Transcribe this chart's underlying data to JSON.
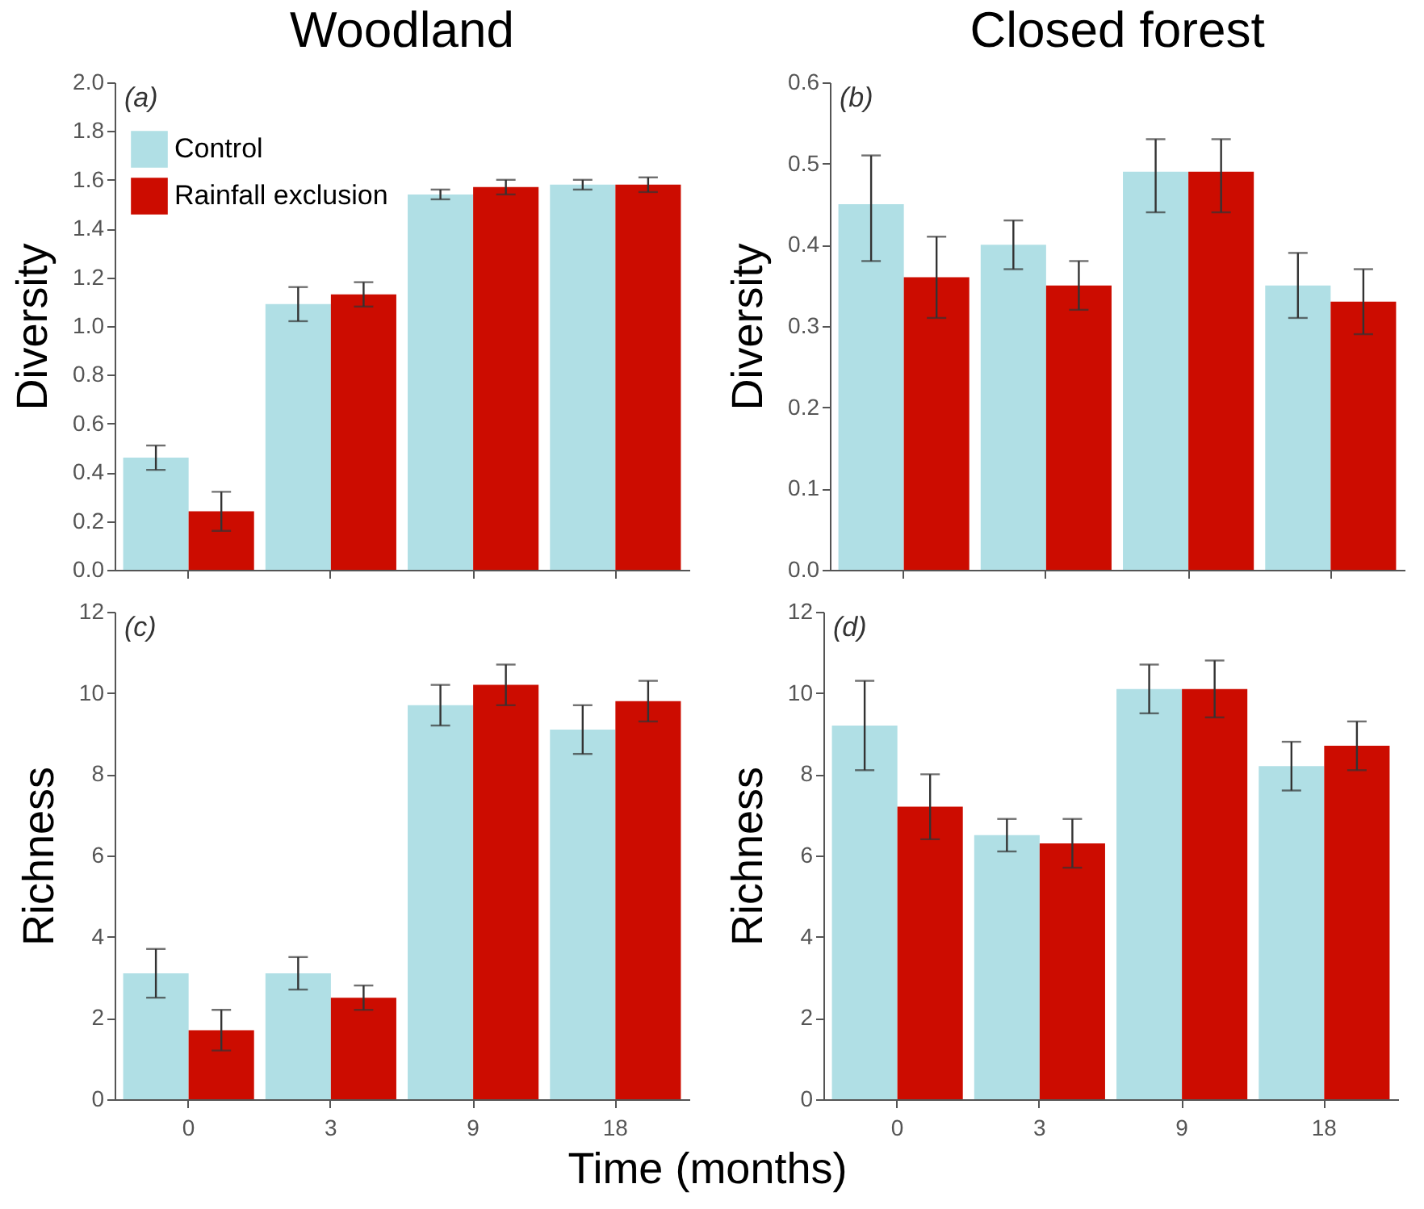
{
  "chart_data": [
    {
      "type": "bar",
      "title": "Woodland",
      "ylabel": "Diversity",
      "annotations": [
        "(a)"
      ],
      "categories": [
        "0",
        "3",
        "9",
        "18"
      ],
      "series": [
        {
          "name": "Control",
          "color": "#b0dfe5",
          "values": [
            0.46,
            1.09,
            1.54,
            1.58
          ],
          "errors": [
            0.05,
            0.07,
            0.02,
            0.02
          ]
        },
        {
          "name": "Rainfall exclusion",
          "color": "#cc0c00",
          "values": [
            0.24,
            1.13,
            1.57,
            1.58
          ],
          "errors": [
            0.08,
            0.05,
            0.03,
            0.03
          ]
        }
      ],
      "ylim": [
        0,
        2.0
      ],
      "yticks": [
        {
          "value": 0,
          "label": "0.0"
        },
        0.2,
        0.4,
        0.6,
        0.8,
        {
          "value": 1,
          "label": "1.0"
        },
        1.2,
        1.4,
        1.6,
        1.8,
        {
          "value": 2,
          "label": "2.0"
        }
      ],
      "legend": "top left",
      "tick_labels": "y"
    },
    {
      "type": "bar",
      "title": "Closed forest",
      "ylabel": "Diversity",
      "annotations": [
        "(b)"
      ],
      "categories": [
        "0",
        "3",
        "9",
        "18"
      ],
      "series": [
        {
          "color": "#b0dfe5",
          "values": [
            0.45,
            0.4,
            0.49,
            0.35
          ],
          "errors": [
            [
              0.38,
              0.51
            ],
            [
              0.37,
              0.43
            ],
            [
              0.44,
              0.53
            ],
            [
              0.31,
              0.39
            ]
          ]
        },
        {
          "color": "#cc0c00",
          "values": [
            0.36,
            0.35,
            0.49,
            0.33
          ],
          "errors": [
            [
              0.31,
              0.41
            ],
            [
              0.32,
              0.38
            ],
            [
              0.44,
              0.53
            ],
            [
              0.29,
              0.37
            ]
          ]
        }
      ],
      "ylim": [
        0,
        0.6
      ],
      "yticks": [
        {
          "value": 0,
          "label": "0.0"
        },
        0.1,
        0.2,
        0.3,
        0.4,
        0.5,
        0.6
      ],
      "tick_labels": "y"
    },
    {
      "type": "bar",
      "xlabel": "Time (months)",
      "ylabel": "Richness",
      "annotations": [
        "(c)"
      ],
      "categories": [
        "0",
        "3",
        "9",
        "18"
      ],
      "series": [
        {
          "color": "#b0dfe5",
          "values": [
            3.1,
            3.1,
            9.7,
            9.1
          ],
          "errors": [
            0.6,
            0.4,
            0.5,
            0.6
          ]
        },
        {
          "color": "#cc0c00",
          "values": [
            1.7,
            2.5,
            10.2,
            9.8
          ],
          "errors": [
            0.5,
            0.3,
            0.5,
            0.5
          ]
        }
      ],
      "ylim": [
        0,
        12
      ],
      "yticks": [
        0,
        2,
        4,
        6,
        8,
        10,
        12
      ]
    },
    {
      "type": "bar",
      "ylabel": "Richness",
      "annotations": [
        "(d)"
      ],
      "categories": [
        "0",
        "3",
        "9",
        "18"
      ],
      "series": [
        {
          "color": "#b0dfe5",
          "values": [
            9.2,
            6.5,
            10.1,
            8.2
          ],
          "errors": [
            1.1,
            0.4,
            0.6,
            0.6
          ]
        },
        {
          "color": "#cc0c00",
          "values": [
            7.2,
            6.3,
            10.1,
            8.7
          ],
          "errors": [
            0.8,
            0.6,
            0.7,
            0.6
          ]
        }
      ],
      "ylim": [
        0,
        12
      ],
      "yticks": [
        0,
        2,
        4,
        6,
        8,
        10,
        12
      ]
    }
  ]
}
